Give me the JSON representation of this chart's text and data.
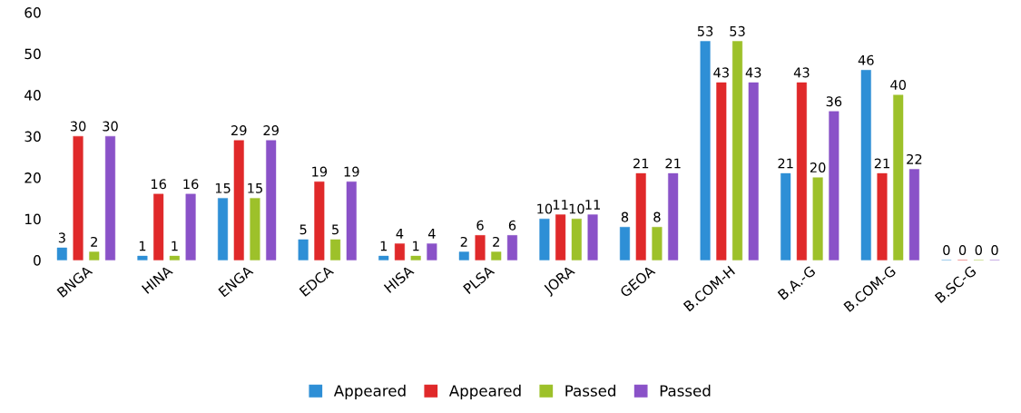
{
  "chart_data": {
    "type": "bar",
    "categories": [
      "BNGA",
      "HINA",
      "ENGA",
      "EDCA",
      "HISA",
      "PLSA",
      "JORA",
      "GEOA",
      "B.COM-H",
      "B.A.-G",
      "B.COM-G",
      "B.SC-G"
    ],
    "series": [
      {
        "name": "Appeared",
        "color": "#2e8fd6",
        "values": [
          3,
          1,
          15,
          5,
          1,
          2,
          10,
          8,
          53,
          21,
          46,
          0
        ]
      },
      {
        "name": "Appeared",
        "color": "#e0292a",
        "values": [
          30,
          16,
          29,
          19,
          4,
          6,
          11,
          21,
          43,
          43,
          21,
          0
        ]
      },
      {
        "name": "Passed",
        "color": "#9dc12a",
        "values": [
          2,
          1,
          15,
          5,
          1,
          2,
          10,
          8,
          53,
          20,
          40,
          0
        ]
      },
      {
        "name": "Passed",
        "color": "#8a52c8",
        "values": [
          30,
          16,
          29,
          19,
          4,
          6,
          11,
          21,
          43,
          36,
          22,
          0
        ]
      }
    ],
    "ylim": [
      0,
      60
    ],
    "yticks": [
      0,
      10,
      20,
      30,
      40,
      50,
      60
    ],
    "data_labels": true,
    "grid": false,
    "legend": "bottom"
  }
}
